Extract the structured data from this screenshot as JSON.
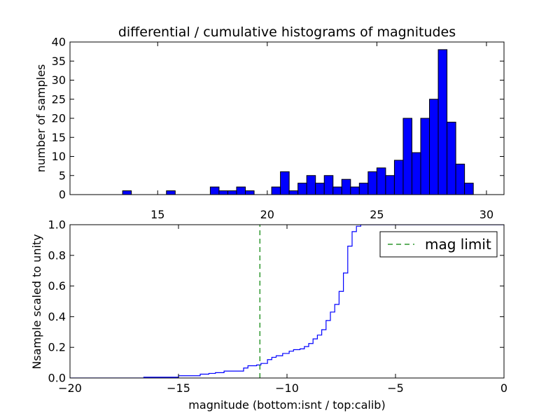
{
  "chart_data": [
    {
      "type": "bar",
      "panel": "top",
      "title": "differential / cumulative histograms of magnitudes",
      "xlabel": "",
      "ylabel": "number of samples",
      "xlim": [
        11.0,
        30.8
      ],
      "ylim": [
        0,
        40
      ],
      "xticks": [
        15,
        20,
        25,
        30
      ],
      "yticks": [
        0,
        5,
        10,
        15,
        20,
        25,
        30,
        35,
        40
      ],
      "xtick_labels": [
        "15",
        "20",
        "25",
        "30"
      ],
      "ytick_labels": [
        "0",
        "5",
        "10",
        "15",
        "20",
        "25",
        "30",
        "35",
        "40"
      ],
      "xaxis_position": "top-of-lower-panel",
      "bar_color": "#0000ff",
      "bin_edges": [
        11.8,
        12.2,
        12.6,
        13.0,
        13.4,
        13.8,
        14.2,
        14.6,
        15.0,
        15.4,
        15.8,
        16.2,
        16.6,
        17.0,
        17.4,
        17.8,
        18.2,
        18.6,
        19.0,
        19.4,
        19.8,
        20.2,
        20.6,
        21.0,
        21.4,
        21.8,
        22.2,
        22.6,
        23.0,
        23.4,
        23.8,
        24.2,
        24.6,
        25.0,
        25.4,
        25.8,
        26.2,
        26.6,
        27.0,
        27.4,
        27.8,
        28.2,
        28.6,
        29.0,
        29.4,
        29.8
      ],
      "values": [
        0,
        0,
        0,
        0,
        1,
        0,
        0,
        0,
        0,
        1,
        0,
        0,
        0,
        0,
        2,
        1,
        1,
        2,
        1,
        0,
        0,
        2,
        6,
        1,
        3,
        5,
        3,
        5,
        2,
        4,
        2,
        3,
        6,
        7,
        5,
        9,
        20,
        11,
        20,
        25,
        38,
        19,
        8,
        3,
        0
      ]
    },
    {
      "type": "line",
      "panel": "bottom",
      "title": "",
      "xlabel": "magnitude (bottom:isnt / top:calib)",
      "ylabel": "Nsample scaled to unity",
      "xlim": [
        -20,
        0
      ],
      "ylim": [
        0,
        1.0
      ],
      "xticks": [
        -20,
        -15,
        -10,
        -5,
        0
      ],
      "yticks": [
        0,
        0.2,
        0.4,
        0.6,
        0.8,
        1.0
      ],
      "xtick_labels": [
        "−20",
        "−15",
        "−10",
        "−5",
        "0"
      ],
      "ytick_labels": [
        "0.0",
        "0.2",
        "0.4",
        "0.6",
        "0.8",
        "1.0"
      ],
      "grid": false,
      "legend": {
        "placement": "top-right",
        "entries": [
          {
            "label": "mag limit",
            "color": "#008000",
            "style": "dashed"
          }
        ]
      },
      "series": [
        {
          "name": "",
          "color": "#0000ff",
          "style": "step",
          "x": [
            -20,
            -16.6,
            -15.0,
            -14.0,
            -13.6,
            -13.3,
            -12.9,
            -12.0,
            -11.8,
            -11.4,
            -11.2,
            -10.9,
            -10.7,
            -10.5,
            -10.2,
            -9.9,
            -9.7,
            -9.4,
            -9.2,
            -9.0,
            -8.8,
            -8.6,
            -8.4,
            -8.2,
            -8.0,
            -7.8,
            -7.6,
            -7.4,
            -7.2,
            -7.0,
            -6.8,
            -6.6
          ],
          "y": [
            0.0,
            0.005,
            0.015,
            0.025,
            0.03,
            0.035,
            0.045,
            0.065,
            0.08,
            0.085,
            0.095,
            0.12,
            0.135,
            0.145,
            0.16,
            0.175,
            0.185,
            0.19,
            0.205,
            0.225,
            0.255,
            0.28,
            0.315,
            0.375,
            0.43,
            0.48,
            0.565,
            0.685,
            0.86,
            0.955,
            0.99,
            1.0
          ]
        },
        {
          "name": "mag limit",
          "color": "#008000",
          "style": "dashed",
          "x": [
            -11.25,
            -11.25
          ],
          "y": [
            0.0,
            1.0
          ]
        }
      ]
    }
  ]
}
